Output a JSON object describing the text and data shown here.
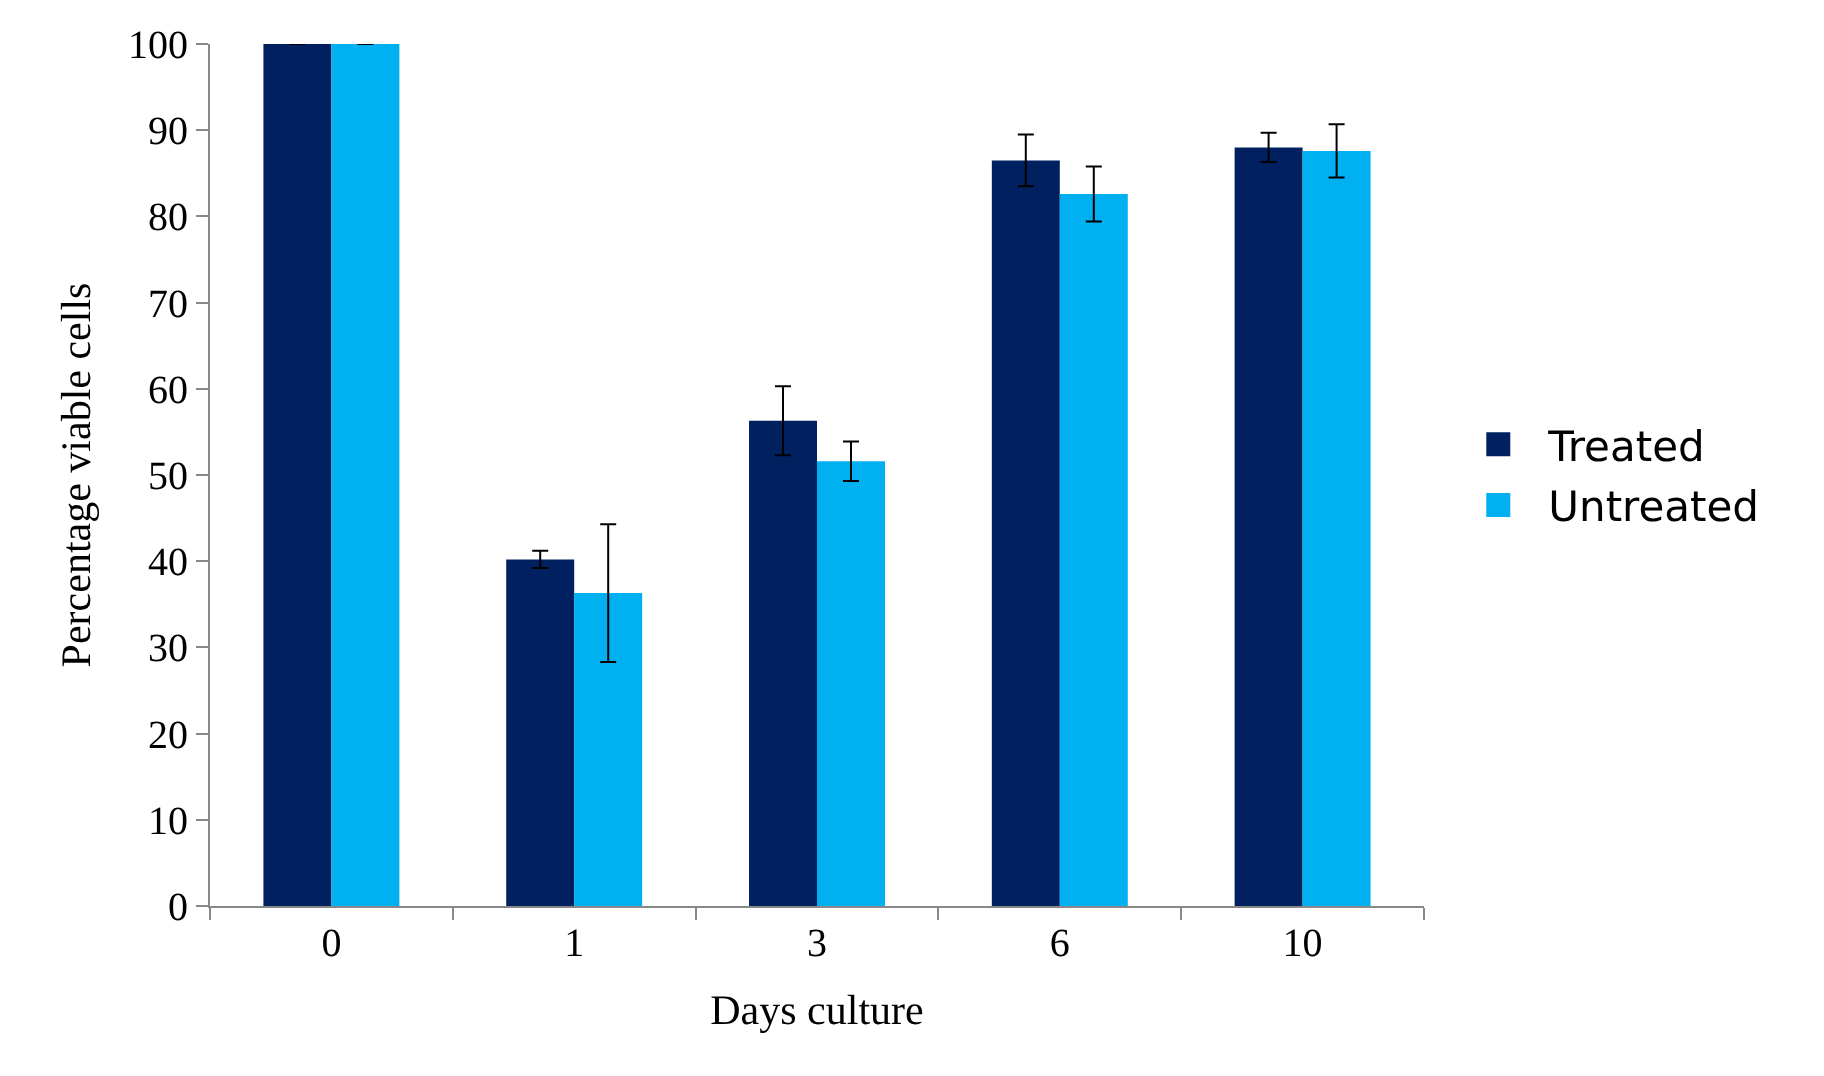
{
  "chart_data": {
    "type": "bar",
    "xlabel": "Days culture",
    "ylabel": "Percentage viable cells",
    "categories": [
      "0",
      "1",
      "3",
      "6",
      "10"
    ],
    "series": [
      {
        "name": "Treated",
        "color": "#002060",
        "values": [
          100,
          40.2,
          56.3,
          86.5,
          88.0
        ],
        "errors": [
          0,
          1,
          4,
          3,
          1.7
        ]
      },
      {
        "name": "Untreated",
        "color": "#00b0f0",
        "values": [
          100,
          36.3,
          51.6,
          82.6,
          87.6
        ],
        "errors": [
          0,
          8,
          2.3,
          3.2,
          3.1
        ]
      }
    ],
    "ylim": [
      0,
      100
    ],
    "yticks": [
      0,
      10,
      20,
      30,
      40,
      50,
      60,
      70,
      80,
      90,
      100
    ],
    "grid": false,
    "legend": "right"
  }
}
